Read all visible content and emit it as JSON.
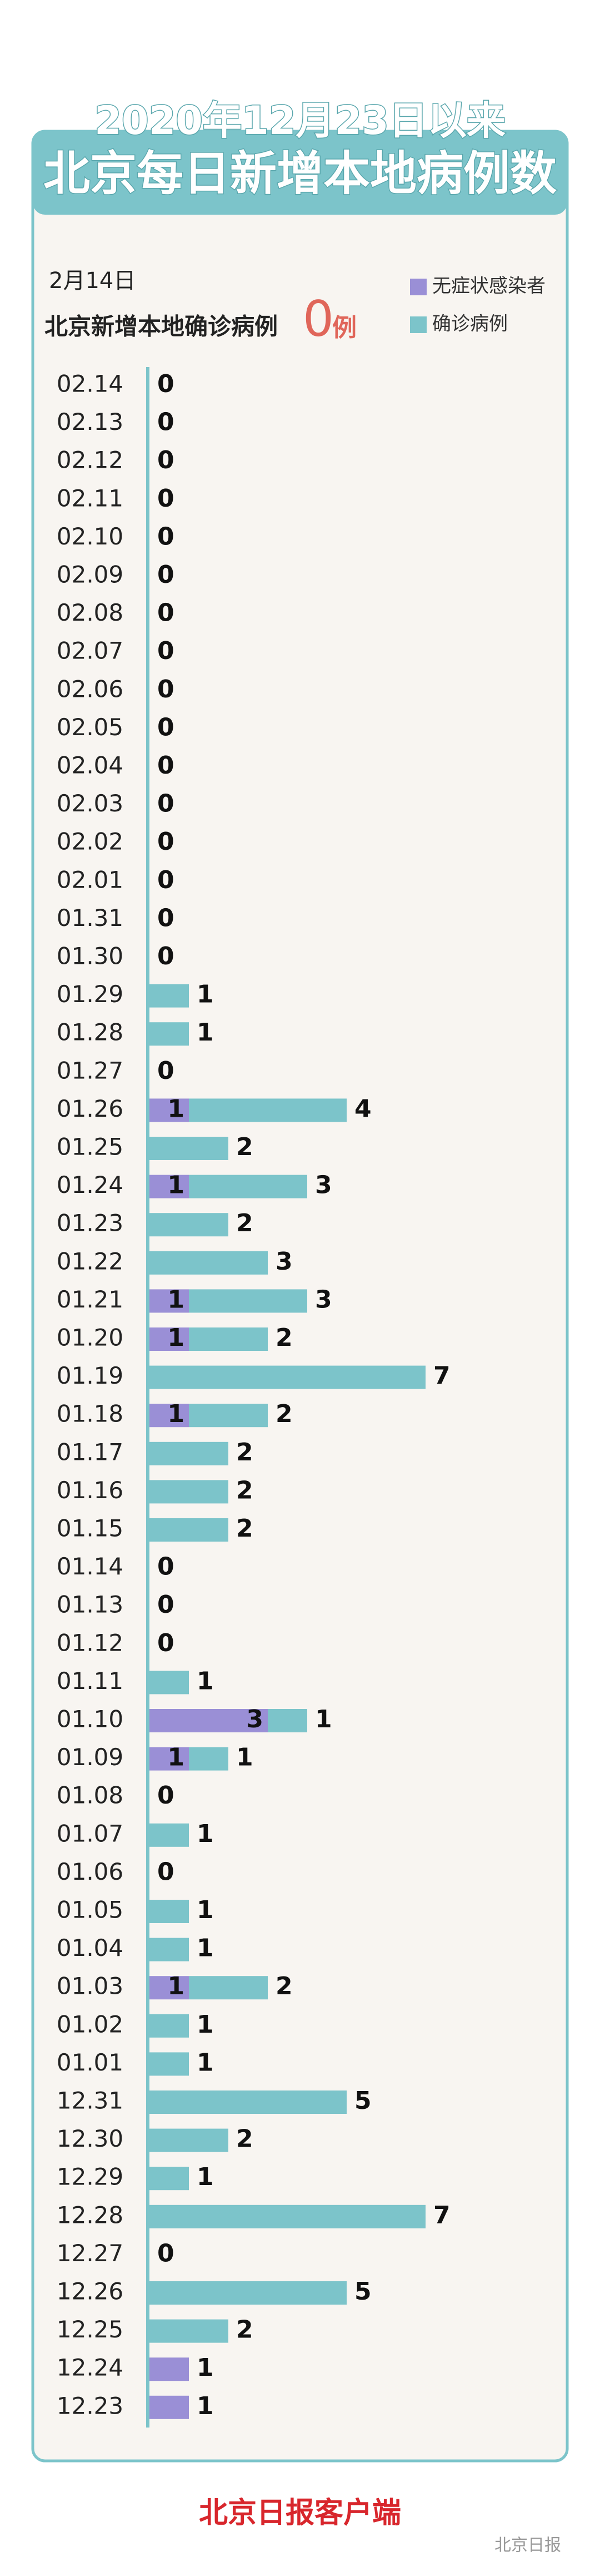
{
  "chart_data": {
    "type": "stacked-barh",
    "title": "2020年12月23日以来",
    "subtitle": "北京每日新增本地病例数",
    "date": "2月14日",
    "headline": "北京新增本地确诊病例",
    "headline_value": 0,
    "headline_unit": "例",
    "categories": [
      "02.14",
      "02.13",
      "02.12",
      "02.11",
      "02.10",
      "02.09",
      "02.08",
      "02.07",
      "02.06",
      "02.05",
      "02.04",
      "02.03",
      "02.02",
      "02.01",
      "01.31",
      "01.30",
      "01.29",
      "01.28",
      "01.27",
      "01.26",
      "01.25",
      "01.24",
      "01.23",
      "01.22",
      "01.21",
      "01.20",
      "01.19",
      "01.18",
      "01.17",
      "01.16",
      "01.15",
      "01.14",
      "01.13",
      "01.12",
      "01.11",
      "01.10",
      "01.09",
      "01.08",
      "01.07",
      "01.06",
      "01.05",
      "01.04",
      "01.03",
      "01.02",
      "01.01",
      "12.31",
      "12.30",
      "12.29",
      "12.28",
      "12.27",
      "12.26",
      "12.25",
      "12.24",
      "12.23"
    ],
    "series": [
      {
        "name": "无症状感染者",
        "color": "#9a8fd6",
        "values": [
          0,
          0,
          0,
          0,
          0,
          0,
          0,
          0,
          0,
          0,
          0,
          0,
          0,
          0,
          0,
          0,
          0,
          0,
          0,
          1,
          0,
          1,
          0,
          0,
          1,
          1,
          0,
          1,
          0,
          0,
          0,
          0,
          0,
          0,
          0,
          3,
          1,
          0,
          0,
          0,
          0,
          0,
          1,
          0,
          0,
          0,
          0,
          0,
          0,
          0,
          0,
          0,
          1,
          1
        ]
      },
      {
        "name": "确诊病例",
        "color": "#7cc4ca",
        "values": [
          0,
          0,
          0,
          0,
          0,
          0,
          0,
          0,
          0,
          0,
          0,
          0,
          0,
          0,
          0,
          0,
          1,
          1,
          0,
          4,
          2,
          3,
          2,
          3,
          3,
          2,
          7,
          2,
          2,
          2,
          2,
          0,
          0,
          0,
          1,
          1,
          1,
          0,
          1,
          0,
          1,
          1,
          2,
          1,
          1,
          5,
          2,
          1,
          7,
          0,
          5,
          2,
          0,
          0
        ]
      }
    ],
    "footer": "北京日报客户端",
    "watermark": "北京日报"
  }
}
